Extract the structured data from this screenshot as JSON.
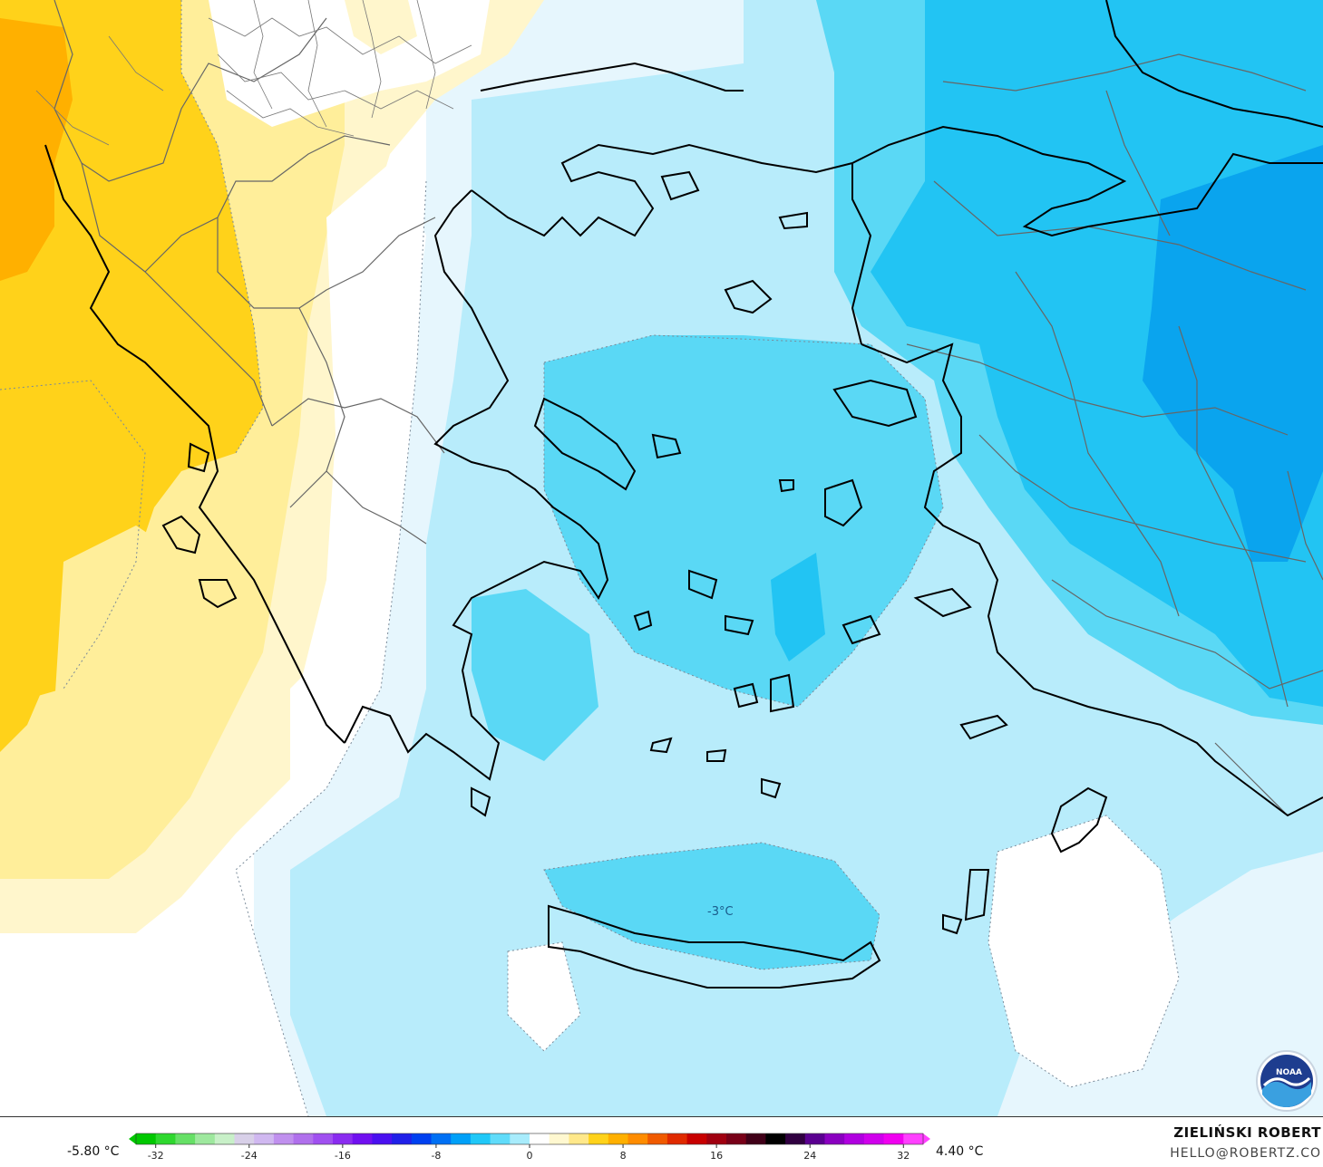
{
  "map": {
    "contour_label": "-3°C",
    "colors": {
      "warm_deep": "#ffb000",
      "warm_mid": "#ffd21a",
      "warm_light": "#ffee9a",
      "warm_pale": "#fff6cc",
      "neutral": "#ffffff",
      "cold_pale": "#e6f6fd",
      "cold_light": "#b8ecfb",
      "cold_mid": "#5ad8f5",
      "cold_strong": "#22c4f3",
      "cold_deep": "#0aa4ee",
      "coast": "#000000",
      "border": "#666666",
      "contour": "#7a8a99"
    }
  },
  "legend": {
    "min_value": "-5.80 °C",
    "max_value": "4.40 °C",
    "ticks": [
      "-32",
      "-24",
      "-16",
      "-8",
      "0",
      "8",
      "16",
      "24",
      "32"
    ],
    "colors": [
      "#00c800",
      "#2ed82e",
      "#66e066",
      "#9ee89e",
      "#c8f0c8",
      "#d8d0e8",
      "#d0b8f0",
      "#c090ee",
      "#b070ec",
      "#a050f0",
      "#8a2cf0",
      "#7010f0",
      "#4a10f0",
      "#2020e8",
      "#0040f0",
      "#0070f4",
      "#00a0f8",
      "#20c8f8",
      "#60dcfa",
      "#a8ecfc",
      "#ffffff",
      "#fff8d0",
      "#ffe88a",
      "#ffd21a",
      "#ffb000",
      "#ff8c00",
      "#f05a00",
      "#e02a00",
      "#c80000",
      "#a00010",
      "#780018",
      "#400018",
      "#000000",
      "#300040",
      "#5a0090",
      "#8a00c0",
      "#b000e0",
      "#d000ec",
      "#f000f0",
      "#ff40ff"
    ]
  },
  "credits": {
    "author": "ZIELIŃSKI ROBERT",
    "email": "HELLO@ROBERTZ.CO",
    "logo_text": "NOAA"
  }
}
